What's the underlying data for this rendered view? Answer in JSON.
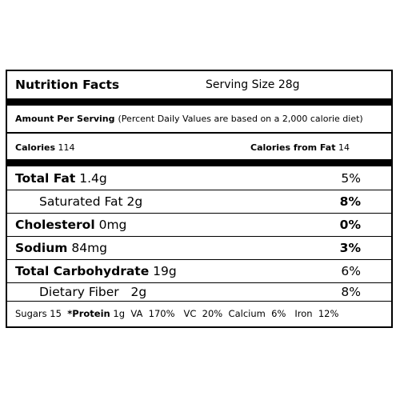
{
  "header": {
    "title": "Nutrition Facts",
    "serving_size": "Serving Size 28g"
  },
  "amount": {
    "label": "Amount Per Serving",
    "note": "(Percent Daily Values are based on a 2,000 calorie diet)"
  },
  "calories": {
    "label": "Calories",
    "value": "114",
    "fat_label": "Calories from Fat",
    "fat_value": "14"
  },
  "nutrients": [
    {
      "name": "Total Fat",
      "amount": "1.4g",
      "pct": "5%"
    },
    {
      "name": "Saturated Fat",
      "amount": "2g",
      "pct": "8%"
    },
    {
      "name": "Cholesterol",
      "amount": "0mg",
      "pct": "0%"
    },
    {
      "name": "Sodium",
      "amount": "84mg",
      "pct": "3%"
    },
    {
      "name": "Total Carbohydrate",
      "amount": "19g",
      "pct": "6%"
    },
    {
      "name": "Dietary Fiber",
      "amount": "2g",
      "pct": "8%"
    }
  ],
  "bottom": {
    "sugars": "Sugars 15",
    "protein_label": "*Protein",
    "protein_value": "1g",
    "vitamins": "VA  170%   VC  20%  Calcium  6%   Iron  12%"
  }
}
